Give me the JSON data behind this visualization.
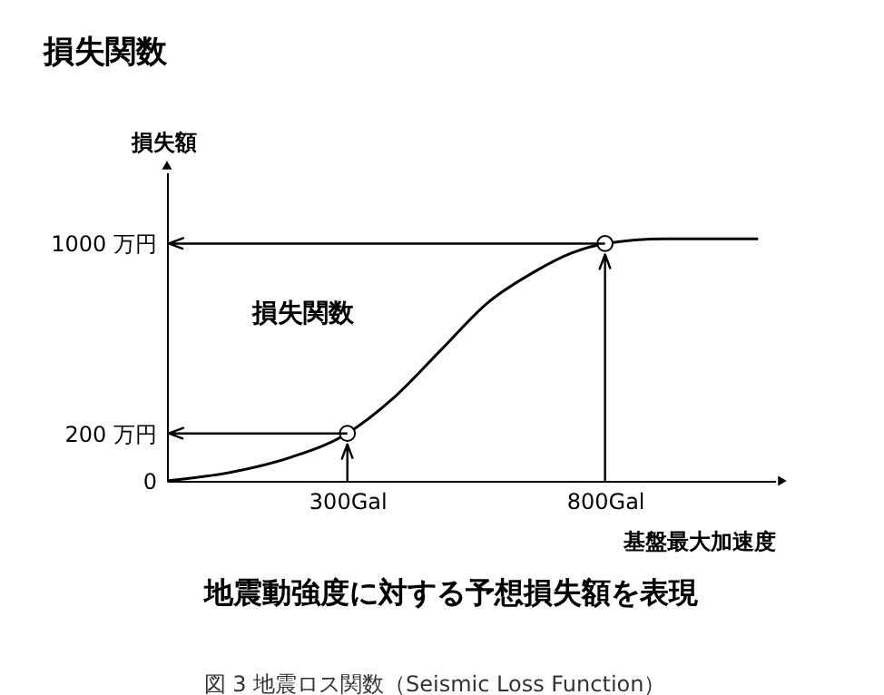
{
  "chart_data": {
    "type": "line",
    "title": "損失関数",
    "xlabel": "基盤最大加速度",
    "ylabel": "損失額",
    "annotations": [
      "地震動強度に対する予想損失額を表現",
      "図 3 地震ロス関数（Seismic Loss Function）"
    ],
    "series": [
      {
        "name": "損失関数",
        "line_style": "solid",
        "color": "#000000",
        "x": [
          -50,
          83,
          191,
          300,
          390,
          481,
          572,
          662,
          735,
          800,
          916,
          1097
        ],
        "values": [
          0,
          40,
          100,
          200,
          350,
          550,
          750,
          880,
          960,
          1000,
          1020,
          1020
        ]
      },
      {
        "type": "scatter",
        "marker": "circle",
        "color": "#000000",
        "x": [
          300,
          800
        ],
        "values": [
          200,
          1000
        ]
      }
    ],
    "xlim": [
      -50,
      1130
    ],
    "ylim": [
      0,
      1300
    ],
    "xticks": [
      {
        "value": 300,
        "label": "300Gal"
      },
      {
        "value": 800,
        "label": "800Gal"
      }
    ],
    "yticks": [
      0,
      {
        "value": 200,
        "label": "200 万円"
      },
      {
        "value": 1000,
        "label": "1000 万円"
      }
    ],
    "ref_lines": [
      {
        "axis": "y",
        "value": 1000,
        "color": "#000000"
      },
      {
        "axis": "y",
        "value": 200,
        "color": "#000000"
      },
      {
        "axis": "x",
        "value": 300,
        "color": "#000000"
      },
      {
        "axis": "x",
        "value": 800,
        "color": "#000000"
      }
    ],
    "grid": false,
    "legend": false
  }
}
